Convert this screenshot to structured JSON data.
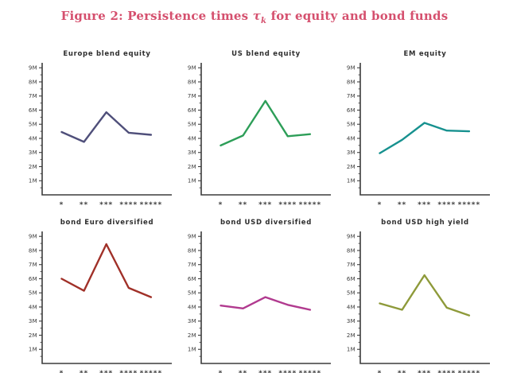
{
  "caption": {
    "prefix": "Figure 2: Persistence times ",
    "symbol": "τ",
    "subscript": "k",
    "suffix": " for equity and bond funds"
  },
  "style": {
    "caption_color": "#d5506e",
    "axis_color": "#3c3c3c",
    "tick_label_color": "#3a3a3a",
    "background": "#ffffff"
  },
  "chart_data": [
    {
      "type": "line",
      "title": "Europe blend equity",
      "categories": [
        "*",
        "**",
        "***",
        "****",
        "*****"
      ],
      "values": [
        4.45,
        3.75,
        5.85,
        4.4,
        4.25
      ],
      "unit": "M",
      "color": "#4f4f7a",
      "ylim": [
        0,
        9.35
      ],
      "y_ticks": [
        "1M",
        "2M",
        "3M",
        "4M",
        "5M",
        "6M",
        "7M",
        "8M",
        "9M"
      ],
      "grid": false,
      "legend": false
    },
    {
      "type": "line",
      "title": "US blend equity",
      "categories": [
        "*",
        "**",
        "***",
        "****",
        "*****"
      ],
      "values": [
        3.5,
        4.2,
        6.65,
        4.15,
        4.3
      ],
      "unit": "M",
      "color": "#2d9e58",
      "ylim": [
        0,
        9.35
      ],
      "y_ticks": [
        "1M",
        "2M",
        "3M",
        "4M",
        "5M",
        "6M",
        "7M",
        "8M",
        "9M"
      ],
      "grid": false,
      "legend": false
    },
    {
      "type": "line",
      "title": "EM equity",
      "categories": [
        "*",
        "**",
        "***",
        "****",
        "*****"
      ],
      "values": [
        2.95,
        3.9,
        5.1,
        4.55,
        4.5
      ],
      "unit": "M",
      "color": "#17918f",
      "ylim": [
        0,
        9.35
      ],
      "y_ticks": [
        "1M",
        "2M",
        "3M",
        "4M",
        "5M",
        "6M",
        "7M",
        "8M",
        "9M"
      ],
      "grid": false,
      "legend": false
    },
    {
      "type": "line",
      "title": "bond Euro diversified",
      "categories": [
        "*",
        "**",
        "***",
        "****",
        "*****"
      ],
      "values": [
        6.0,
        5.15,
        8.45,
        5.35,
        4.7
      ],
      "unit": "M",
      "color": "#a03028",
      "ylim": [
        0,
        9.35
      ],
      "y_ticks": [
        "1M",
        "2M",
        "3M",
        "4M",
        "5M",
        "6M",
        "7M",
        "8M",
        "9M"
      ],
      "grid": false,
      "legend": false
    },
    {
      "type": "line",
      "title": "bond USD diversified",
      "categories": [
        "*",
        "**",
        "***",
        "****",
        "*****"
      ],
      "values": [
        4.1,
        3.9,
        4.7,
        4.15,
        3.8
      ],
      "unit": "M",
      "color": "#b13a8f",
      "ylim": [
        0,
        9.35
      ],
      "y_ticks": [
        "1M",
        "2M",
        "3M",
        "4M",
        "5M",
        "6M",
        "7M",
        "8M",
        "9M"
      ],
      "grid": false,
      "legend": false
    },
    {
      "type": "line",
      "title": "bond USD high yield",
      "categories": [
        "*",
        "**",
        "***",
        "****",
        "*****"
      ],
      "values": [
        4.25,
        3.8,
        6.25,
        3.95,
        3.4
      ],
      "unit": "M",
      "color": "#8e9a3a",
      "ylim": [
        0,
        9.35
      ],
      "y_ticks": [
        "1M",
        "2M",
        "3M",
        "4M",
        "5M",
        "6M",
        "7M",
        "8M",
        "9M"
      ],
      "grid": false,
      "legend": false
    }
  ]
}
